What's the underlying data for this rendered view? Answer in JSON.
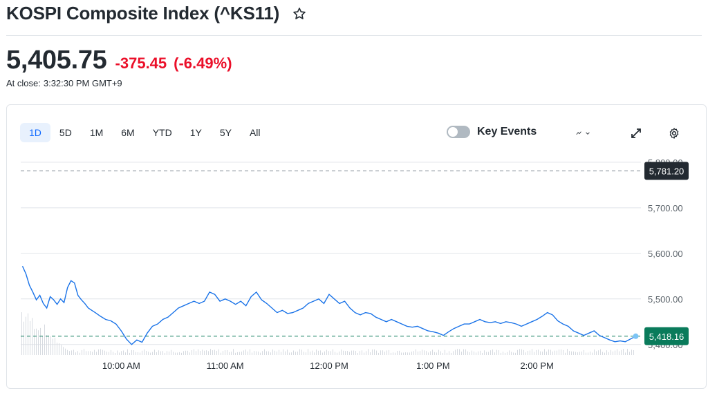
{
  "header": {
    "title": "KOSPI Composite Index (^KS11)",
    "price": "5,405.75",
    "change": "-375.45",
    "change_pct": "(-6.49%)",
    "close_label": "At close:",
    "close_time": "3:32:30 PM GMT+9"
  },
  "chart": {
    "tabs": [
      {
        "label": "1D",
        "active": true
      },
      {
        "label": "5D"
      },
      {
        "label": "1M"
      },
      {
        "label": "6M"
      },
      {
        "label": "YTD"
      },
      {
        "label": "1Y"
      },
      {
        "label": "5Y"
      },
      {
        "label": "All"
      }
    ],
    "key_events_label": "Key Events",
    "tools": [
      "chart-type-icon",
      "expand-icon",
      "settings-icon"
    ],
    "colors": {
      "line": "#1a73e8",
      "up_badge": "#0a7b5b",
      "prev_badge": "#232a31",
      "down": "#eb0f29"
    }
  },
  "chart_data": {
    "type": "line",
    "y_ticks": [
      "5,800.00",
      "5,700.00",
      "5,600.00",
      "5,500.00",
      "5,400.00"
    ],
    "y_tick_values": [
      5800,
      5700,
      5600,
      5500,
      5400
    ],
    "x_ticks": [
      "10:00 AM",
      "11:00 AM",
      "12:00 PM",
      "1:00 PM",
      "2:00 PM"
    ],
    "x_tick_minutes": [
      600,
      660,
      720,
      780,
      840
    ],
    "x_range_minutes": [
      542,
      900
    ],
    "ylim": [
      5386,
      5812
    ],
    "previous_close": {
      "label": "5,781.20",
      "value": 5781.2
    },
    "current": {
      "label": "5,418.16",
      "value": 5418.16
    },
    "series": [
      {
        "x_minutes": [
          543,
          545,
          547,
          549,
          551,
          553,
          555,
          557,
          559,
          561,
          563,
          565,
          567,
          569,
          571,
          573,
          575,
          577,
          579,
          581,
          583,
          585,
          588,
          591,
          594,
          597,
          600,
          603,
          606,
          609,
          612,
          615,
          618,
          621,
          624,
          627,
          630,
          633,
          636,
          639,
          642,
          645,
          648,
          651,
          654,
          657,
          660,
          663,
          666,
          669,
          672,
          675,
          678,
          681,
          684,
          687,
          690,
          693,
          696,
          699,
          702,
          705,
          708,
          711,
          714,
          717,
          720,
          723,
          726,
          729,
          732,
          735,
          738,
          741,
          744,
          747,
          750,
          753,
          756,
          759,
          762,
          765,
          768,
          771,
          774,
          777,
          780,
          783,
          786,
          789,
          792,
          795,
          798,
          801,
          804,
          807,
          810,
          813,
          816,
          819,
          822,
          825,
          828,
          831,
          834,
          837,
          840,
          843,
          846,
          849,
          852,
          855,
          858,
          861,
          864,
          867,
          870,
          873,
          876,
          879,
          882,
          885,
          888,
          891,
          894,
          897
        ],
        "values": [
          5572,
          5555,
          5530,
          5515,
          5498,
          5508,
          5490,
          5480,
          5505,
          5498,
          5488,
          5500,
          5492,
          5525,
          5540,
          5535,
          5508,
          5498,
          5490,
          5480,
          5475,
          5470,
          5462,
          5455,
          5452,
          5445,
          5430,
          5412,
          5400,
          5410,
          5405,
          5425,
          5440,
          5445,
          5455,
          5460,
          5470,
          5480,
          5485,
          5490,
          5495,
          5490,
          5495,
          5515,
          5510,
          5495,
          5500,
          5495,
          5488,
          5495,
          5485,
          5505,
          5515,
          5498,
          5490,
          5480,
          5470,
          5475,
          5468,
          5470,
          5475,
          5480,
          5490,
          5495,
          5500,
          5490,
          5510,
          5500,
          5490,
          5495,
          5480,
          5470,
          5465,
          5470,
          5468,
          5460,
          5455,
          5450,
          5455,
          5450,
          5445,
          5440,
          5438,
          5440,
          5435,
          5430,
          5428,
          5425,
          5420,
          5428,
          5435,
          5440,
          5445,
          5445,
          5450,
          5455,
          5450,
          5448,
          5450,
          5446,
          5450,
          5448,
          5445,
          5440,
          5445,
          5450,
          5455,
          5462,
          5470,
          5465,
          5452,
          5445,
          5440,
          5430,
          5425,
          5420,
          5425,
          5430,
          5420,
          5415,
          5410,
          5406,
          5408,
          5406,
          5412,
          5418
        ]
      }
    ]
  }
}
